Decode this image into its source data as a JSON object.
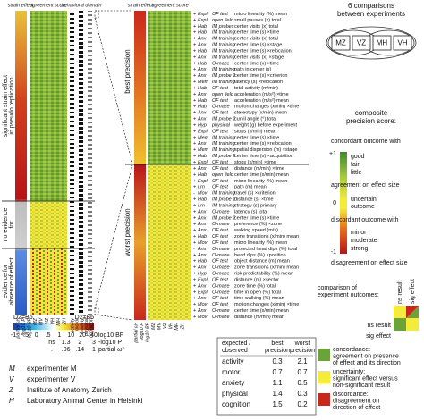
{
  "left_panel": {
    "headers": [
      "strain effect",
      "agreement score",
      "behavioral domain"
    ],
    "groups": [
      [
        "significant strain effect",
        "in pseudo replication"
      ],
      [
        "no evidence",
        "for"
      ],
      [
        "evidence for",
        "absence of effect"
      ]
    ],
    "column_labels": [
      "partial ω²",
      "-log10 P",
      "log10 BF",
      "MZ",
      "MV",
      "VZ",
      "VH",
      "MH",
      "ZH"
    ],
    "domain_labels": [
      "activity",
      "motor",
      "anxiety",
      "physical",
      "cognition"
    ]
  },
  "right_panel": {
    "headers": [
      "strain effect",
      "agreement score"
    ],
    "sections": [
      "best precision",
      "worst precision"
    ],
    "rows": [
      [
        "+",
        "Expl",
        "OF test",
        "micro linearity (%) mean"
      ],
      [
        "+",
        "Expl",
        "open field",
        "small pauses (x) total"
      ],
      [
        "+",
        "Hab",
        "IM probes",
        "center visits (x) total"
      ],
      [
        "+",
        "Hab",
        "IM training",
        "center time (s) ×time"
      ],
      [
        "+",
        "Anx",
        "IM training",
        "center visits (x) total"
      ],
      [
        "+",
        "Anx",
        "IM training",
        "center time (s) ×stage"
      ],
      [
        "+",
        "Hab",
        "IM training",
        "center time (s) ×relocation"
      ],
      [
        "+",
        "Anx",
        "IM training",
        "center visits (x) ×stage"
      ],
      [
        "+",
        "Hab",
        "O-maze",
        "center time (x) ×time"
      ],
      [
        "+",
        "Anx",
        "IM training",
        "path in center (s)"
      ],
      [
        "+",
        "Anx",
        "IM probe 1",
        "center time (s) ×criterion"
      ],
      [
        "+",
        "Mem",
        "IM training",
        "latency (s) ×relocation"
      ],
      [
        "+",
        "Hab",
        "OF test",
        "total activity (m/min)"
      ],
      [
        "+",
        "Anx",
        "open field",
        "acceleration (m/s²) ×time"
      ],
      [
        "+",
        "Hab",
        "OF test",
        "acceleration (m/s²) mean"
      ],
      [
        "+",
        "Hab",
        "O-maze",
        "motion changes (x/min) ×time"
      ],
      [
        "+",
        "Anx",
        "OF test",
        "stereotypy (x/min) mean"
      ],
      [
        "+",
        "Anx",
        "IM probe 2",
        "curvil angle (°) total"
      ],
      [
        "+",
        "Hyp",
        "physical",
        "weight (g) before experiment"
      ],
      [
        "+",
        "Expl",
        "OF test",
        "stops (x/min) mean"
      ],
      [
        "+",
        "Mem",
        "IM training",
        "center time (s) ×time"
      ],
      [
        "+",
        "Anx",
        "IM training",
        "center time (s) ×relocation"
      ],
      [
        "+",
        "Mem",
        "IM training",
        "spatial dispersion (m) ×stage"
      ],
      [
        "+",
        "Hab",
        "IM probe 2",
        "center time (s) ×acquisition"
      ],
      [
        "+",
        "Expl",
        "OF test",
        "stops (x/min) ×time"
      ],
      [
        "+",
        "Anx",
        "OF test",
        "distance (m/min) ×time"
      ],
      [
        "+",
        "Hab",
        "open field",
        "center time (x/min) mean"
      ],
      [
        "+",
        "Expl",
        "OF test",
        "micro linearity (%) mean"
      ],
      [
        "+",
        "Lrn",
        "OF test",
        "path (m) mean"
      ],
      [
        "-",
        "Mov",
        "IM training",
        "travel (s) ×criterion"
      ],
      [
        "+",
        "Hab",
        "IM probe 1",
        "distance (s) ×time"
      ],
      [
        "+",
        "Lrn",
        "IM training",
        "strategy (s) primary"
      ],
      [
        "+",
        "Anx",
        "O-maze",
        "latency (s) total"
      ],
      [
        "+",
        "Anx",
        "IM probe 2",
        "center time (s) ×time"
      ],
      [
        "+",
        "Anx",
        "O-maze",
        "preference (%) ×zone"
      ],
      [
        "+",
        "Anx",
        "OF test",
        "walking speed (m/s)"
      ],
      [
        "+",
        "Hab",
        "OF test",
        "zone transitions (x/min) mean"
      ],
      [
        "+",
        "Mov",
        "OF test",
        "micro linearity (%) mean"
      ],
      [
        "-",
        "Anx",
        "O-maze",
        "protected head dips (%) total"
      ],
      [
        "+",
        "Anx",
        "O-maze",
        "head dips (%) ×position"
      ],
      [
        "+",
        "Hab",
        "OF test",
        "object distance (m) mean"
      ],
      [
        "+",
        "Anx",
        "O-maze",
        "zone transitions (x/min) mean"
      ],
      [
        "+",
        "Hyp",
        "O-maze",
        "risk predictability (%) mean"
      ],
      [
        "+",
        "Expl",
        "OF test",
        "distance (m) ×sector"
      ],
      [
        "+",
        "Anx",
        "O-maze",
        "zone time (%) total"
      ],
      [
        "+",
        "Expl",
        "O-maze",
        "time in open (%) total"
      ],
      [
        "+",
        "Anx",
        "OF test",
        "time walking (%) mean"
      ],
      [
        "+",
        "Mov",
        "OF test",
        "motion changes (x/min) ×time"
      ],
      [
        "+",
        "Anx",
        "O-maze",
        "center time (x/min) mean"
      ],
      [
        "+",
        "Mov",
        "O-maze",
        "distance (m/min) mean"
      ]
    ]
  },
  "comparisons": {
    "title_lines": [
      "6 comparisons",
      "between experiments"
    ],
    "boxes": [
      "MZ",
      "VZ",
      "MH",
      "VH"
    ]
  },
  "precision_legend": {
    "title_lines": [
      "composite",
      "precision score:"
    ],
    "concordant": "concordant outcome with",
    "top": "+1",
    "middle": "0",
    "bottom": "-1",
    "agreement_levels": [
      "good",
      "fair",
      "little"
    ],
    "agreement": "agreement on effect size",
    "uncertain": [
      "uncertain",
      "outcome"
    ],
    "discordant": "discordant outcome with",
    "disagreement_levels": [
      "minor",
      "moderate",
      "strong"
    ],
    "disagreement": "disagreement on effect size"
  },
  "outcomes_legend": {
    "title_lines": [
      "comparison of",
      "experiment outcomes:"
    ],
    "axes": [
      "ns result",
      "sig effect"
    ],
    "items": [
      [
        "concordance:",
        "agreement on presence",
        "of effect and its direction"
      ],
      [
        "uncertainty:",
        "significant effect versus",
        "non-significant result"
      ],
      [
        "discordance:",
        "disagreement on",
        "direction of effect"
      ]
    ]
  },
  "color_scale": {
    "ends": [
      "D2=B6",
      "D2≠B6"
    ],
    "rows": [
      {
        "ticks": [
          "-1",
          "-.5",
          "0",
          ".5",
          "1",
          "10",
          "20",
          "40"
        ],
        "label": "log10 BF"
      },
      {
        "ticks": [
          "ns",
          "1.3",
          "2",
          "3"
        ],
        "label": "-log10 P"
      },
      {
        "ticks": [
          ".",
          ".06",
          ".14",
          "1"
        ],
        "label": "partial ω²"
      }
    ]
  },
  "experimenters": [
    [
      "M",
      "experimenter M"
    ],
    [
      "V",
      "experimenter V"
    ],
    [
      "Z",
      "Institute of Anatomy Zurich"
    ],
    [
      "H",
      "Laboratory Animal Center in Helsinki"
    ]
  ],
  "table": {
    "header": [
      [
        "expected /",
        "observed"
      ],
      [
        "best",
        "precision"
      ],
      [
        "worst",
        "precision"
      ]
    ],
    "rows": [
      [
        "activity",
        0.3,
        2.1
      ],
      [
        "motor",
        0.7,
        0.7
      ],
      [
        "anxiety",
        1.1,
        0.5
      ],
      [
        "physical",
        1.4,
        0.3
      ],
      [
        "cognition",
        1.5,
        0.2
      ]
    ]
  }
}
